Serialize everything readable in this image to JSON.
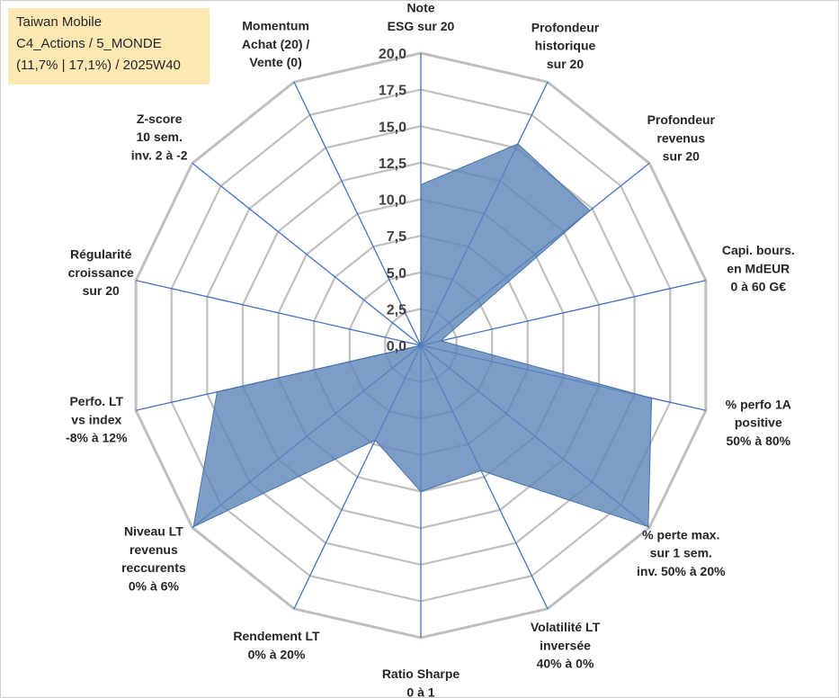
{
  "info_box": {
    "lines": [
      "Taiwan Mobile",
      "C4_Actions / 5_MONDE",
      "(11,7% | 17,1%) / 2025W40"
    ]
  },
  "colors": {
    "fill": "#5b84b8",
    "stroke": "#4a73a8",
    "grid": "#bfbfbf",
    "spoke": "#4472c4",
    "infobox": "#fde8b3"
  },
  "chart_data": {
    "type": "radar",
    "rmin": 0,
    "rmax": 20,
    "tick_labels": [
      "0,0",
      "2,5",
      "5,0",
      "7,5",
      "10,0",
      "12,5",
      "15,0",
      "17,5",
      "20,0"
    ],
    "categories": [
      [
        "Note",
        "ESG sur 20"
      ],
      [
        "Profondeur",
        "historique",
        "sur 20"
      ],
      [
        "Profondeur",
        "revenus",
        "sur 20"
      ],
      [
        "Capi. bours.",
        "en MdEUR",
        "0 à 60 G€"
      ],
      [
        "% perfo 1A",
        "positive",
        "50% à 80%"
      ],
      [
        "% perte max.",
        "sur 1 sem.",
        "inv. 50% à 20%"
      ],
      [
        "Volatilité LT",
        "inversée",
        "40% à 0%"
      ],
      [
        "Ratio Sharpe",
        "0 à 1"
      ],
      [
        "Rendement LT",
        "0% à 20%"
      ],
      [
        "Niveau LT",
        "revenus",
        "reccurents",
        "0% à 6%"
      ],
      [
        "Perfo. LT",
        "vs index",
        "-8% à 12%"
      ],
      [
        "Régularité",
        "croissance",
        "sur 20"
      ],
      [
        "Z-score",
        "10 sem.",
        "inv. 2 à -2"
      ],
      [
        "Momentum",
        "Achat (20) /",
        "Vente (0)"
      ]
    ],
    "values": [
      11,
      15.3,
      14.8,
      1.4,
      16.2,
      19.9,
      9.5,
      10,
      7.2,
      19.9,
      14.3,
      0,
      0,
      0
    ],
    "grid": true,
    "legend": "none"
  }
}
